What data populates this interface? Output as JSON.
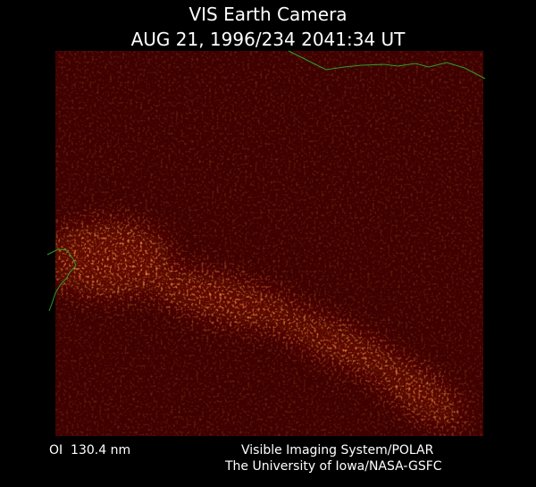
{
  "header": {
    "title": "VIS Earth Camera",
    "timestamp": "AUG 21, 1996/234 2041:34 UT"
  },
  "footer": {
    "filter": "OI  130.4 nm",
    "instrument": "Visible Imaging System/POLAR",
    "institution": "The University of Iowa/NASA-GSFC"
  }
}
